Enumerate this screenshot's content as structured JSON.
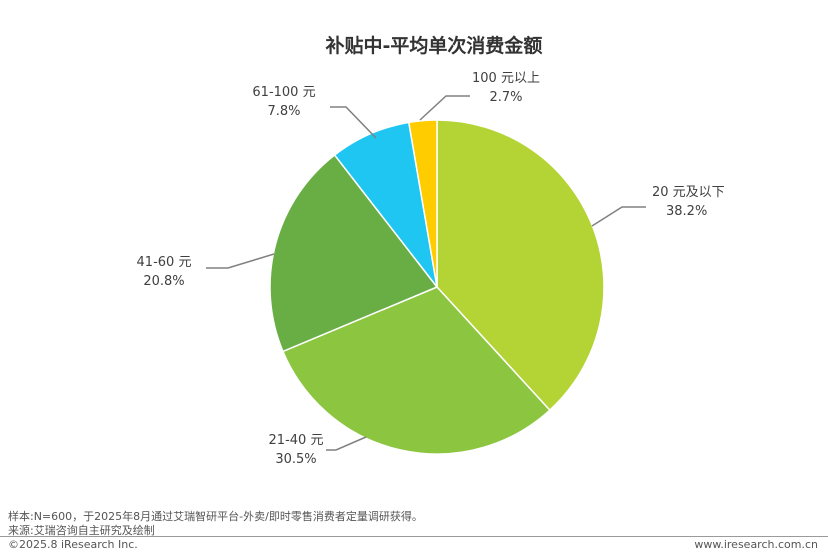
{
  "chart_data": {
    "type": "pie",
    "title": "补贴中-平均单次消费金额",
    "start_angle_deg": 0,
    "direction": "clockwise",
    "slices": [
      {
        "label": "20 元及以下",
        "value": 38.2,
        "value_label": "38.2%",
        "color": "#b4d335"
      },
      {
        "label": "21-40 元",
        "value": 30.5,
        "value_label": "30.5%",
        "color": "#8cc540"
      },
      {
        "label": "41-60 元",
        "value": 20.8,
        "value_label": "20.8%",
        "color": "#68ae45"
      },
      {
        "label": "61-100 元",
        "value": 7.8,
        "value_label": "7.8%",
        "color": "#1fc6f2"
      },
      {
        "label": "100 元以上",
        "value": 2.7,
        "value_label": "2.7%",
        "color": "#ffcc00"
      }
    ],
    "legend": "none"
  },
  "footer": {
    "note": "样本:N=600，于2025年8月通过艾瑞智研平台-外卖/即时零售消费者定量调研获得。",
    "source": "来源:艾瑞咨询自主研究及绘制",
    "copyright": "©2025.8 iResearch Inc.",
    "website": "www.iresearch.com.cn"
  }
}
